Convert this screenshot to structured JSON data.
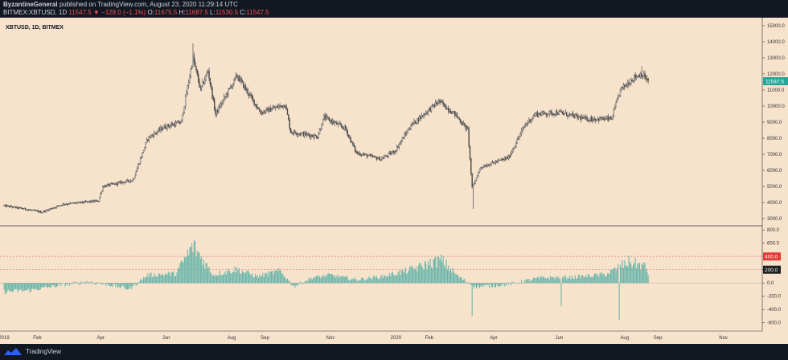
{
  "header": {
    "author": "ByzantineGeneral",
    "published": "published on TradingView.com, August 23, 2020 11:29:14 UTC",
    "symbol": "BITMEX:XBTUSD, 1D",
    "last": "11547.5",
    "change": "▼ −128.0 (−1.1%)",
    "o_label": "O:",
    "o_value": "11675.5",
    "h_label": "H:",
    "h_value": "11687.5",
    "l_label": "L:",
    "l_value": "11530.5",
    "c_label": "C:",
    "c_value": "11547.5"
  },
  "footer": {
    "brand": "TradingView"
  },
  "colors": {
    "background": "#f7e2cc",
    "candle": "#4a4a4a",
    "histogram": "#5fb3a8",
    "level_line": "#e57373",
    "last_price_badge": "#26a69a",
    "level_400_badge": "#e53935",
    "level_200_badge": "#1e1e1e"
  },
  "chart_data": [
    {
      "type": "candlestick",
      "title": "XBTUSD, 1D, BITMEX",
      "ylim": [
        2600,
        15400
      ],
      "yticks": [
        "3000.0",
        "4000.0",
        "5000.0",
        "6000.0",
        "7000.0",
        "8000.0",
        "9000.0",
        "10000.0",
        "11000.0",
        "12000.0",
        "13000.0",
        "14000.0",
        "15000.0"
      ],
      "last_price_label": "11547.5",
      "x_labels": [
        "2019",
        "Feb",
        "Apr",
        "Jun",
        "Aug",
        "Sep",
        "Nov",
        "2020",
        "Feb",
        "Apr",
        "Jun",
        "Aug",
        "Sep",
        "Nov"
      ],
      "anchors": [
        {
          "date": "2019-01-01",
          "close": 3800
        },
        {
          "date": "2019-01-20",
          "close": 3600
        },
        {
          "date": "2019-02-05",
          "close": 3400
        },
        {
          "date": "2019-02-25",
          "close": 3900
        },
        {
          "date": "2019-03-30",
          "close": 4100
        },
        {
          "date": "2019-04-03",
          "close": 5000
        },
        {
          "date": "2019-05-01",
          "close": 5400
        },
        {
          "date": "2019-05-15",
          "close": 8000
        },
        {
          "date": "2019-05-30",
          "close": 8700
        },
        {
          "date": "2019-06-15",
          "close": 9000
        },
        {
          "date": "2019-06-26",
          "close": 13000
        },
        {
          "date": "2019-07-03",
          "close": 11000
        },
        {
          "date": "2019-07-10",
          "close": 12200
        },
        {
          "date": "2019-07-17",
          "close": 9500
        },
        {
          "date": "2019-08-06",
          "close": 11900
        },
        {
          "date": "2019-08-28",
          "close": 9600
        },
        {
          "date": "2019-09-20",
          "close": 10100
        },
        {
          "date": "2019-09-25",
          "close": 8400
        },
        {
          "date": "2019-10-20",
          "close": 8100
        },
        {
          "date": "2019-10-26",
          "close": 9300
        },
        {
          "date": "2019-11-15",
          "close": 8600
        },
        {
          "date": "2019-11-25",
          "close": 7100
        },
        {
          "date": "2019-12-18",
          "close": 6700
        },
        {
          "date": "2019-12-31",
          "close": 7200
        },
        {
          "date": "2020-01-15",
          "close": 8800
        },
        {
          "date": "2020-02-10",
          "close": 10300
        },
        {
          "date": "2020-02-25",
          "close": 9500
        },
        {
          "date": "2020-03-08",
          "close": 8500
        },
        {
          "date": "2020-03-12",
          "close": 4900
        },
        {
          "date": "2020-03-20",
          "close": 6200
        },
        {
          "date": "2020-04-15",
          "close": 6800
        },
        {
          "date": "2020-04-30",
          "close": 8800
        },
        {
          "date": "2020-05-10",
          "close": 9500
        },
        {
          "date": "2020-06-01",
          "close": 9600
        },
        {
          "date": "2020-06-25",
          "close": 9200
        },
        {
          "date": "2020-07-20",
          "close": 9200
        },
        {
          "date": "2020-07-28",
          "close": 11000
        },
        {
          "date": "2020-08-10",
          "close": 11800
        },
        {
          "date": "2020-08-17",
          "close": 12000
        },
        {
          "date": "2020-08-23",
          "close": 11547.5
        }
      ],
      "wick_extremes": [
        {
          "date": "2019-06-26",
          "high": 13900
        },
        {
          "date": "2020-03-13",
          "low": 3600
        },
        {
          "date": "2020-08-17",
          "high": 12480
        }
      ]
    },
    {
      "type": "histogram",
      "ylim": [
        -700,
        850
      ],
      "yticks": [
        "800.0",
        "600.0",
        "400.0",
        "200.0",
        "0.0",
        "-200.0",
        "-400.0",
        "-600.0"
      ],
      "levels": [
        {
          "value": 400,
          "label": "400.0"
        },
        {
          "value": 200,
          "label": "200.0"
        }
      ],
      "anchors": [
        {
          "date": "2019-01-01",
          "value": -130
        },
        {
          "date": "2019-01-25",
          "value": -110
        },
        {
          "date": "2019-02-20",
          "value": -40
        },
        {
          "date": "2019-03-20",
          "value": 20
        },
        {
          "date": "2019-04-10",
          "value": -30
        },
        {
          "date": "2019-04-28",
          "value": -90
        },
        {
          "date": "2019-05-15",
          "value": 120
        },
        {
          "date": "2019-06-10",
          "value": 140
        },
        {
          "date": "2019-06-26",
          "value": 560
        },
        {
          "date": "2019-07-15",
          "value": 120
        },
        {
          "date": "2019-08-05",
          "value": 210
        },
        {
          "date": "2019-08-25",
          "value": 100
        },
        {
          "date": "2019-09-15",
          "value": 180
        },
        {
          "date": "2019-09-28",
          "value": -50
        },
        {
          "date": "2019-10-15",
          "value": 80
        },
        {
          "date": "2019-11-01",
          "value": 120
        },
        {
          "date": "2019-11-25",
          "value": 50
        },
        {
          "date": "2019-12-20",
          "value": 100
        },
        {
          "date": "2020-01-15",
          "value": 200
        },
        {
          "date": "2020-02-12",
          "value": 350
        },
        {
          "date": "2020-02-28",
          "value": 100
        },
        {
          "date": "2020-03-15",
          "value": -60
        },
        {
          "date": "2020-04-15",
          "value": -20
        },
        {
          "date": "2020-05-15",
          "value": 80
        },
        {
          "date": "2020-06-15",
          "value": 90
        },
        {
          "date": "2020-07-15",
          "value": 130
        },
        {
          "date": "2020-08-05",
          "value": 320
        },
        {
          "date": "2020-08-20",
          "value": 250
        },
        {
          "date": "2020-08-23",
          "value": 140
        }
      ],
      "spikes": [
        {
          "date": "2020-03-12",
          "value": -500
        },
        {
          "date": "2020-06-03",
          "value": -350
        },
        {
          "date": "2020-07-27",
          "value": -560
        }
      ],
      "x_labels": [
        "2019",
        "Feb",
        "Apr",
        "Jun",
        "Aug",
        "Sep",
        "Nov",
        "2020",
        "Feb",
        "Apr",
        "Jun",
        "Aug",
        "Sep",
        "Nov"
      ]
    }
  ]
}
